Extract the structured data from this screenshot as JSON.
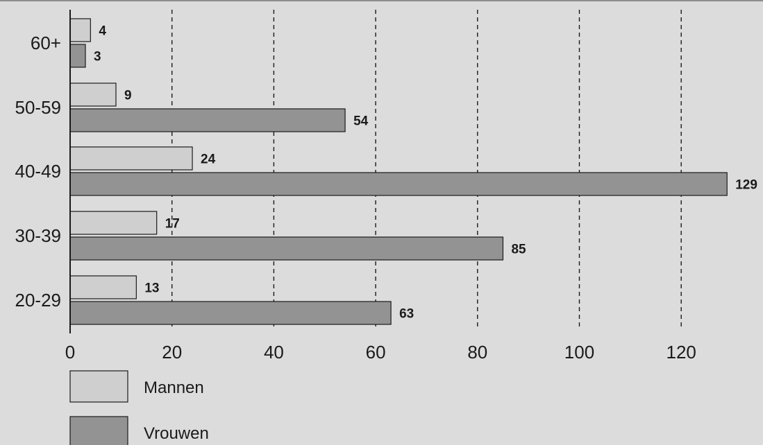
{
  "chart_data": {
    "type": "bar",
    "orientation": "horizontal",
    "categories": [
      "60+",
      "50-59",
      "40-49",
      "30-39",
      "20-29"
    ],
    "series": [
      {
        "name": "Mannen",
        "color": "#cfcfcf",
        "values": [
          4,
          9,
          24,
          17,
          13
        ]
      },
      {
        "name": "Vrouwen",
        "color": "#939393",
        "values": [
          3,
          54,
          129,
          85,
          63
        ]
      }
    ],
    "x_ticks": [
      0,
      20,
      40,
      60,
      80,
      100,
      120
    ],
    "xlim": [
      0,
      130
    ],
    "grid": "vertical dashed",
    "legend_position": "bottom-left",
    "title": "",
    "xlabel": "",
    "ylabel": ""
  }
}
